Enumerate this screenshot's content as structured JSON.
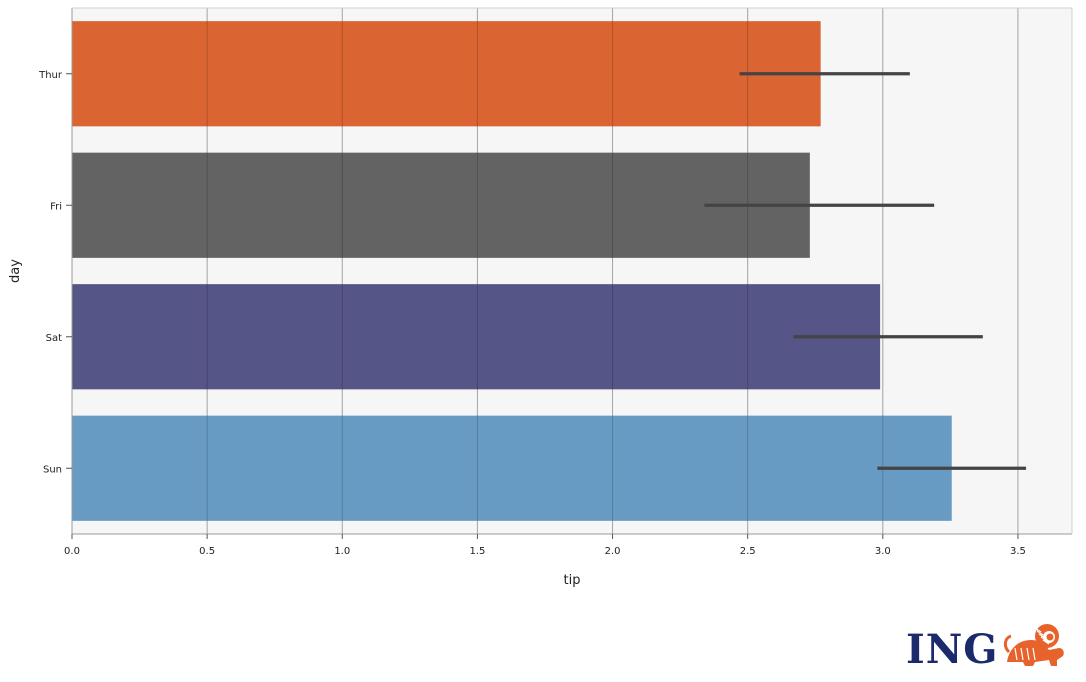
{
  "chart_data": {
    "type": "bar",
    "orientation": "horizontal",
    "categories": [
      "Thur",
      "Fri",
      "Sat",
      "Sun"
    ],
    "values": [
      2.77,
      2.73,
      2.99,
      3.255
    ],
    "error_bars": [
      [
        2.47,
        3.1
      ],
      [
        2.34,
        3.19
      ],
      [
        2.67,
        3.37
      ],
      [
        2.98,
        3.53
      ]
    ],
    "colors": [
      "#d95f2b",
      "#5e5e5e",
      "#515083",
      "#6398c2"
    ],
    "xlabel": "tip",
    "ylabel": "day",
    "xlim": [
      0,
      3.7
    ],
    "xticks": [
      "0.0",
      "0.5",
      "1.0",
      "1.5",
      "2.0",
      "2.5",
      "3.0",
      "3.5"
    ],
    "grid": "vertical",
    "background_color": "#f6f6f7",
    "errorbar_color": "#444444"
  },
  "logo": {
    "text": "ING",
    "icon": "lion-icon",
    "text_color": "#1b2a6b",
    "icon_color": "#e8632c"
  }
}
